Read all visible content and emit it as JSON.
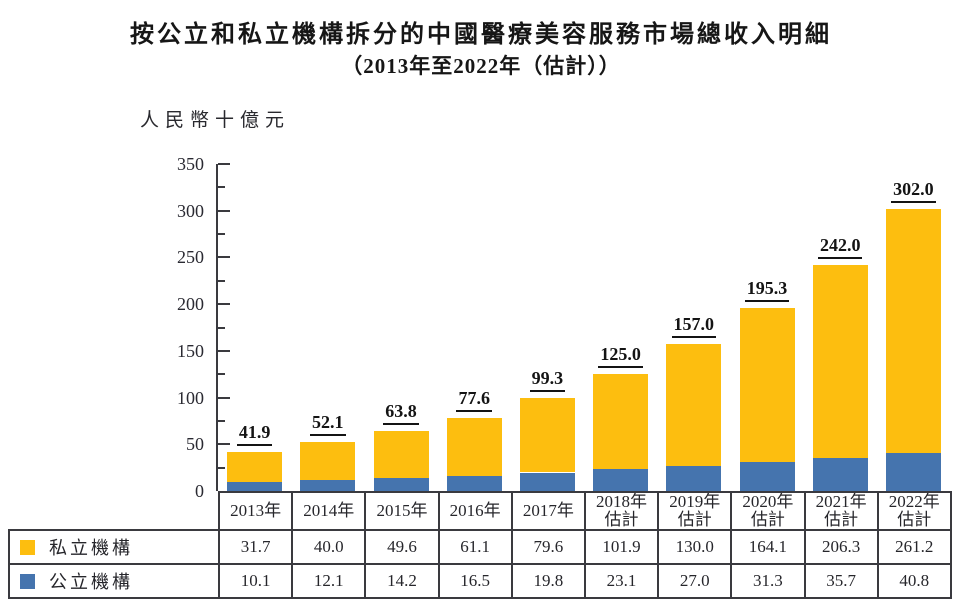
{
  "title": "按公立和私立機構拆分的中國醫療美容服務市場總收入明細",
  "subtitle": "（2013年至2022年（估計））",
  "unit_label": "人民幣十億元",
  "chart_data": {
    "type": "bar",
    "stacked": true,
    "title": "按公立和私立機構拆分的中國醫療美容服務市場總收入明細（2013年至2022年（估計））",
    "ylabel": "人民幣十億元",
    "categories": [
      "2013年",
      "2014年",
      "2015年",
      "2016年",
      "2017年",
      "2018年\n估計",
      "2019年\n估計",
      "2020年\n估計",
      "2021年\n估計",
      "2022年\n估計"
    ],
    "series": [
      {
        "name": "私立機構",
        "color": "#FDBE0F",
        "values": [
          31.7,
          40.0,
          49.6,
          61.1,
          79.6,
          101.9,
          130.0,
          164.1,
          206.3,
          261.2
        ]
      },
      {
        "name": "公立機構",
        "color": "#4574AE",
        "values": [
          10.1,
          12.1,
          14.2,
          16.5,
          19.8,
          23.1,
          27.0,
          31.3,
          35.7,
          40.8
        ]
      }
    ],
    "total_labels": [
      "41.9",
      "52.1",
      "63.8",
      "77.6",
      "99.3",
      "125.0",
      "157.0",
      "195.3",
      "242.0",
      "302.0"
    ],
    "ylim": [
      0,
      350
    ],
    "ytick_step": 50,
    "yticks": [
      0,
      50,
      100,
      150,
      200,
      250,
      300,
      350
    ],
    "minor_tick_step": 25,
    "grid": false,
    "legend_position": "bottom-table"
  },
  "colors": {
    "private": "#FDBE0F",
    "public": "#4574AE",
    "border": "#3a3a3f",
    "text": "#26262b"
  }
}
